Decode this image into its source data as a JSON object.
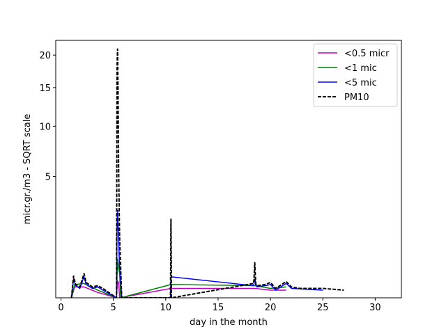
{
  "chart_data": {
    "type": "line",
    "xlabel": "day in the month",
    "ylabel": "micr.gr./m3 - SQRT scale",
    "xlim": [
      -0.5,
      32.5
    ],
    "ylim": [
      0,
      22.5
    ],
    "y_scale": "sqrt",
    "x_ticks": [
      0,
      5,
      10,
      15,
      20,
      25,
      30
    ],
    "y_ticks": [
      5,
      10,
      15,
      20
    ],
    "grid": false,
    "legend_position": "top-right",
    "series": [
      {
        "name": "<0.5 micr",
        "color": "#bf00bf",
        "dash": "solid",
        "x": [
          1.0,
          1.3,
          2.2,
          3.5,
          5.3,
          5.4,
          5.5,
          5.6,
          10.5,
          18.5,
          20.0,
          21.5
        ],
        "y": [
          0,
          0.04,
          0.04,
          0.01,
          0,
          0.1,
          0.08,
          0,
          0.03,
          0.03,
          0.02,
          0.02
        ]
      },
      {
        "name": "<1 mic",
        "color": "#008000",
        "dash": "solid",
        "x": [
          1.0,
          1.3,
          2.2,
          3.5,
          5.3,
          5.4,
          5.5,
          5.6,
          5.7,
          10.5,
          18.5,
          20.0,
          21.5
        ],
        "y": [
          0,
          0.06,
          0.07,
          0.02,
          0,
          0.5,
          0.3,
          0.2,
          0,
          0.06,
          0.05,
          0.03,
          0.04
        ]
      },
      {
        "name": "<5 mic",
        "color": "#0000ff",
        "dash": "solid",
        "x": [
          1.0,
          1.2,
          1.4,
          1.8,
          2.2,
          2.4,
          3.0,
          3.5,
          4.0,
          5.3,
          5.35,
          5.4,
          5.45,
          5.5,
          5.55,
          5.6,
          5.8,
          10.45,
          10.5,
          18.4,
          18.5,
          18.7,
          19.5,
          20.0,
          20.5,
          21.5,
          22.0,
          25.0
        ],
        "y": [
          0,
          0.12,
          0.05,
          0.03,
          0.15,
          0.06,
          0.03,
          0.04,
          0.02,
          0,
          1.5,
          2.6,
          1.8,
          1.2,
          0.6,
          0.3,
          0,
          0,
          0.15,
          0.05,
          0.12,
          0.04,
          0.05,
          0.06,
          0.02,
          0.07,
          0.03,
          0.02
        ]
      },
      {
        "name": "PM10",
        "color": "#000000",
        "dash": "dashed",
        "x": [
          1.0,
          1.2,
          1.4,
          1.8,
          2.2,
          2.4,
          3.0,
          3.5,
          4.0,
          5.3,
          5.35,
          5.4,
          5.45,
          5.5,
          5.55,
          5.6,
          5.8,
          10.45,
          10.5,
          10.55,
          18.4,
          18.5,
          18.6,
          18.8,
          19.5,
          20.0,
          20.5,
          21.5,
          22.0,
          22.8,
          25.0,
          27.0
        ],
        "y": [
          0,
          0.16,
          0.06,
          0.04,
          0.2,
          0.08,
          0.04,
          0.05,
          0.03,
          0,
          18.0,
          21.0,
          14.0,
          6.0,
          3.0,
          1.2,
          0,
          0,
          2.1,
          0,
          0.07,
          0.42,
          0.06,
          0.05,
          0.06,
          0.08,
          0.03,
          0.09,
          0.04,
          0.03,
          0.03,
          0.02
        ]
      }
    ]
  }
}
